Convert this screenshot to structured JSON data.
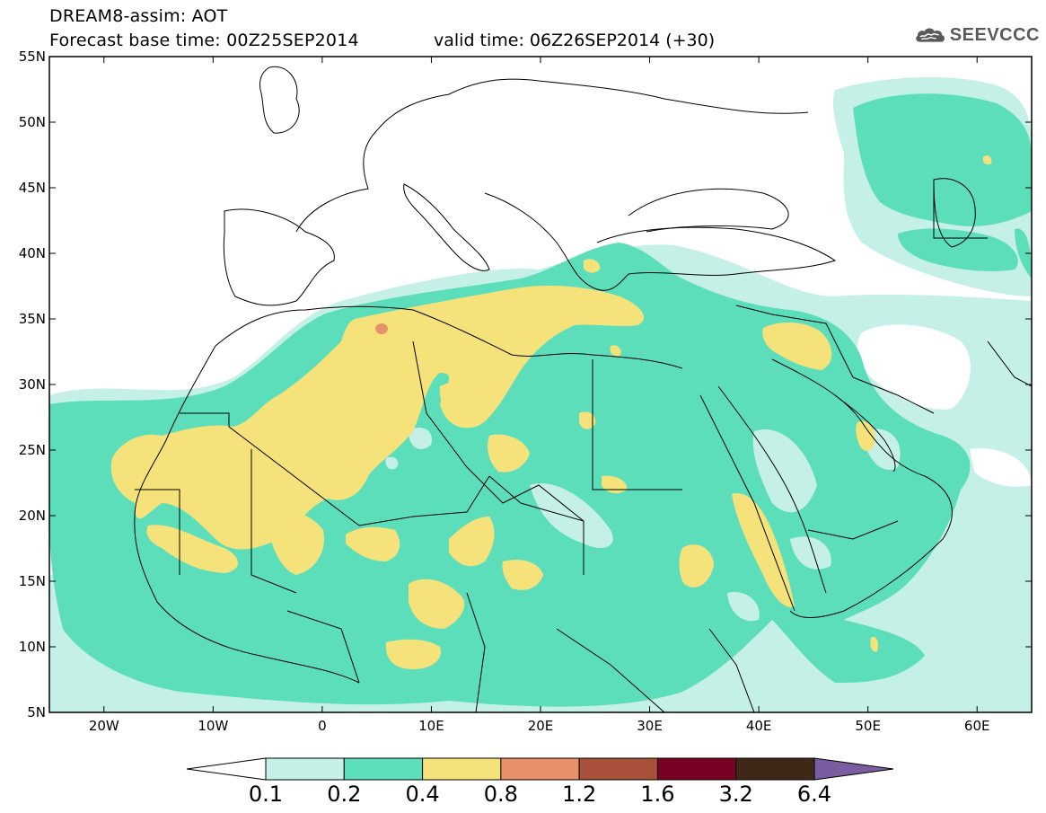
{
  "header": {
    "title": "DREAM8-assim: AOT",
    "base_time": "Forecast base time: 00Z25SEP2014",
    "valid_time": "valid time: 06Z26SEP2014 (+30)",
    "logo_text": "SEEVCCC"
  },
  "map": {
    "lat_labels": [
      "55N",
      "50N",
      "45N",
      "40N",
      "35N",
      "30N",
      "25N",
      "20N",
      "15N",
      "10N",
      "5N"
    ],
    "lon_labels": [
      "20W",
      "10W",
      "0",
      "10E",
      "20E",
      "30E",
      "40E",
      "50E",
      "60E"
    ],
    "extent": {
      "lon": [
        -25,
        65
      ],
      "lat": [
        5,
        55
      ]
    }
  },
  "colorbar": {
    "labels": [
      "0.1",
      "0.2",
      "0.4",
      "0.8",
      "1.2",
      "1.6",
      "3.2",
      "6.4"
    ],
    "colors": [
      "#ffffff",
      "#c4f0e8",
      "#5ddebb",
      "#f5e27a",
      "#e8906a",
      "#a8503a",
      "#7a0024",
      "#402818",
      "#7a5ca0"
    ]
  },
  "colors": {
    "background": "#ffffff",
    "level1": "#c4f0e8",
    "level2": "#5ddebb",
    "level3": "#f5e27a",
    "level4": "#e8906a",
    "border": "#000000"
  }
}
